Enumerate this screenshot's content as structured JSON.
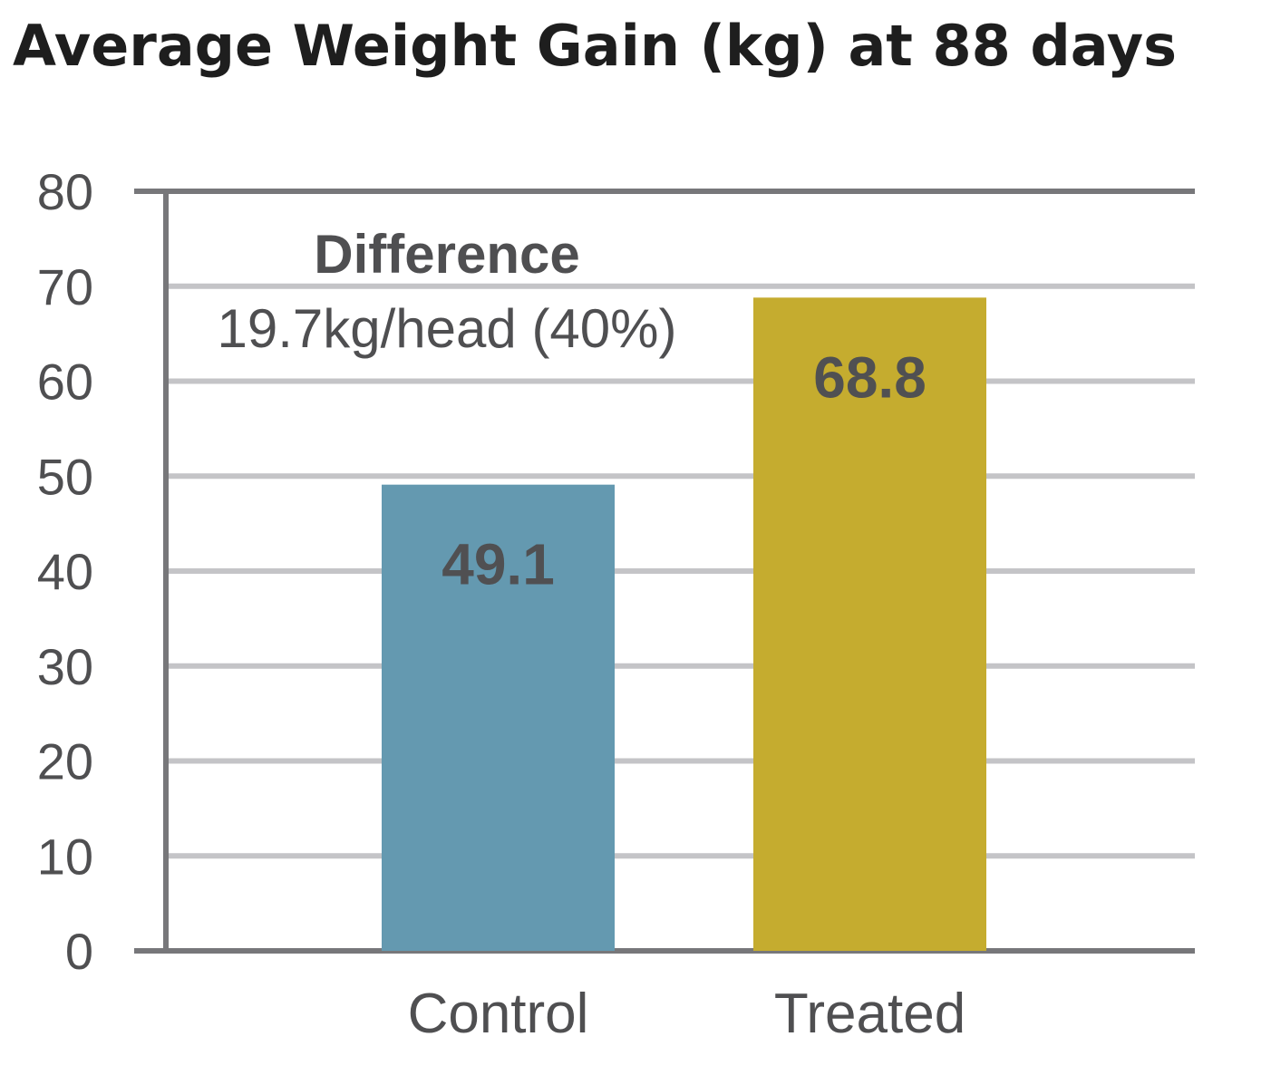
{
  "chart_data": {
    "type": "bar",
    "title": "Average Weight Gain (kg) at 88 days",
    "xlabel": "",
    "ylabel": "",
    "categories": [
      "Control",
      "Treated"
    ],
    "values": [
      49.1,
      68.8
    ],
    "data_labels": [
      "49.1",
      "68.8"
    ],
    "bar_colors": [
      "#6499b0",
      "#c5ac2f"
    ],
    "ylim": [
      0,
      80
    ],
    "yticks": [
      0,
      10,
      20,
      30,
      40,
      50,
      60,
      70,
      80
    ],
    "grid": true,
    "annotation": {
      "line1": "Difference",
      "line2": "19.7kg/head (40%)"
    }
  }
}
